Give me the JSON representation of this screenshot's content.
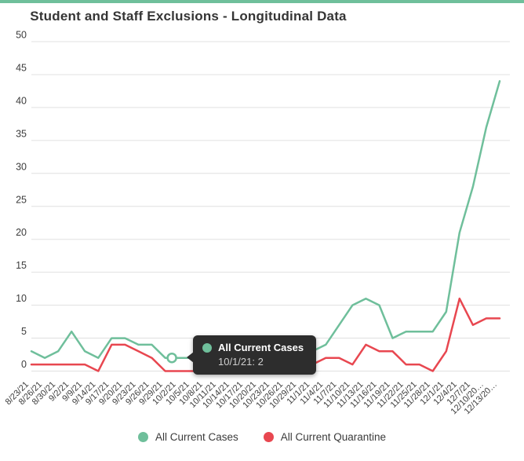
{
  "colors": {
    "accent_bar": "#6fbf9b",
    "cases_green": "#6fbf9b",
    "quarantine_red": "#e84750",
    "gridline": "#e0e0e0",
    "axis_text": "#3d3d3d",
    "tooltip_bg": "#2d2d2d"
  },
  "chart_data": {
    "type": "line",
    "title": "Student and Staff Exclusions - Longitudinal Data",
    "xlabel": "",
    "ylabel": "",
    "ylim": [
      0,
      50
    ],
    "yticks": [
      0,
      5,
      10,
      15,
      20,
      25,
      30,
      35,
      40,
      45,
      50
    ],
    "grid": true,
    "legend_position": "bottom",
    "categories": [
      "8/23/21",
      "8/26/21",
      "8/30/21",
      "9/2/21",
      "9/9/21",
      "9/14/21",
      "9/17/21",
      "9/20/21",
      "9/23/21",
      "9/26/21",
      "9/29/21",
      "10/2/21",
      "10/5/21",
      "10/8/21",
      "10/11/21",
      "10/14/21",
      "10/17/21",
      "10/20/21",
      "10/23/21",
      "10/26/21",
      "10/29/21",
      "11/1/21",
      "11/4/21",
      "11/7/21",
      "11/10/21",
      "11/13/21",
      "11/16/21",
      "11/19/21",
      "11/22/21",
      "11/25/21",
      "11/28/21",
      "12/1/21",
      "12/4/21",
      "12/7/21",
      "12/10/20…",
      "12/13/20…"
    ],
    "series": [
      {
        "name": "All Current Cases",
        "color": "#6fbf9b",
        "values": [
          3,
          2,
          3,
          6,
          3,
          2,
          5,
          5,
          4,
          4,
          2,
          2,
          2,
          1,
          2,
          2,
          3,
          2,
          3,
          4,
          4,
          3,
          4,
          7,
          10,
          11,
          10,
          5,
          6,
          6,
          6,
          9,
          21,
          28,
          37,
          44
        ]
      },
      {
        "name": "All Current Quarantine",
        "color": "#e84750",
        "values": [
          1,
          1,
          1,
          1,
          1,
          0,
          4,
          4,
          3,
          2,
          0,
          0,
          0,
          0,
          1,
          1,
          0,
          0,
          1,
          1,
          1,
          1,
          2,
          2,
          1,
          4,
          3,
          3,
          1,
          1,
          0,
          3,
          11,
          7,
          8,
          8
        ]
      }
    ],
    "highlighted_point": {
      "series": "All Current Cases",
      "date": "10/1/21",
      "value": 2,
      "between_categories": [
        "9/29/21",
        "10/2/21"
      ]
    }
  },
  "tooltip": {
    "value_line": "10/1/21: 2"
  }
}
